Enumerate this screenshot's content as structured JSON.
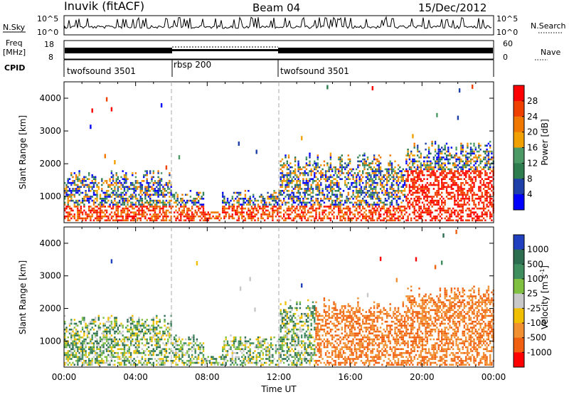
{
  "header": {
    "station": "Inuvik (fitACF)",
    "beam": "Beam 04",
    "date": "15/Dec/2012"
  },
  "status_panel": {
    "nsky_label": "N.Sky",
    "nsky_ticks": [
      "10^5",
      "10^0"
    ],
    "nsearch_label": "N.Search",
    "nsearch_ticks": [
      "10^5",
      "10^0"
    ],
    "freq_label_1": "Freq",
    "freq_label_2": "[MHz]",
    "freq_ticks": [
      "18",
      "8"
    ],
    "nave_label": "Nave",
    "nave_ticks": [
      "60",
      "0"
    ],
    "cpid_label": "CPID",
    "cpid_segments": [
      {
        "name": "twofsound 3501",
        "start_hr": 0,
        "end_hr": 6
      },
      {
        "name": "rbsp 200",
        "start_hr": 6,
        "end_hr": 12
      },
      {
        "name": "twofsound 3501",
        "start_hr": 12,
        "end_hr": 24
      }
    ]
  },
  "colors": {
    "power": [
      "#0000ff",
      "#1e3fa8",
      "#2e7d4f",
      "#4b9a66",
      "#f0a000",
      "#f07800",
      "#f04000",
      "#ff0000"
    ],
    "velocity": [
      "#2040c0",
      "#2e6e50",
      "#3e8e5e",
      "#80c040",
      "#c8c8c8",
      "#f0c000",
      "#f09030",
      "#f06010",
      "#ff0000"
    ]
  },
  "chart_data": [
    {
      "type": "heatmap",
      "panel": "power",
      "ylabel": "Slant Range [km]",
      "xlabel": "",
      "x_unit": "hours UT",
      "xlim": [
        0,
        24
      ],
      "ylim": [
        200,
        4500
      ],
      "yticks": [
        "1000",
        "2000",
        "3000",
        "4000"
      ],
      "colorbar_label": "Power [dB]",
      "colorbar_ticks": [
        "4",
        "8",
        "12",
        "16",
        "20",
        "24",
        "28"
      ],
      "vertical_markers_hr": [
        6,
        12
      ]
    },
    {
      "type": "heatmap",
      "panel": "velocity",
      "ylabel": "Slant Range [km]",
      "xlabel": "Time UT",
      "x_unit": "hours UT",
      "xlim": [
        0,
        24
      ],
      "ylim": [
        200,
        4500
      ],
      "yticks": [
        "1000",
        "2000",
        "3000",
        "4000"
      ],
      "xticks": [
        "00:00",
        "04:00",
        "08:00",
        "12:00",
        "16:00",
        "20:00",
        "00:00"
      ],
      "colorbar_label": "Velocity [m s",
      "colorbar_label_sup": "-1",
      "colorbar_label_end": "]",
      "colorbar_ticks": [
        "1000",
        "500",
        "100",
        "25",
        "-25",
        "-100",
        "-500",
        "-1000"
      ],
      "vertical_markers_hr": [
        6,
        12
      ]
    }
  ]
}
